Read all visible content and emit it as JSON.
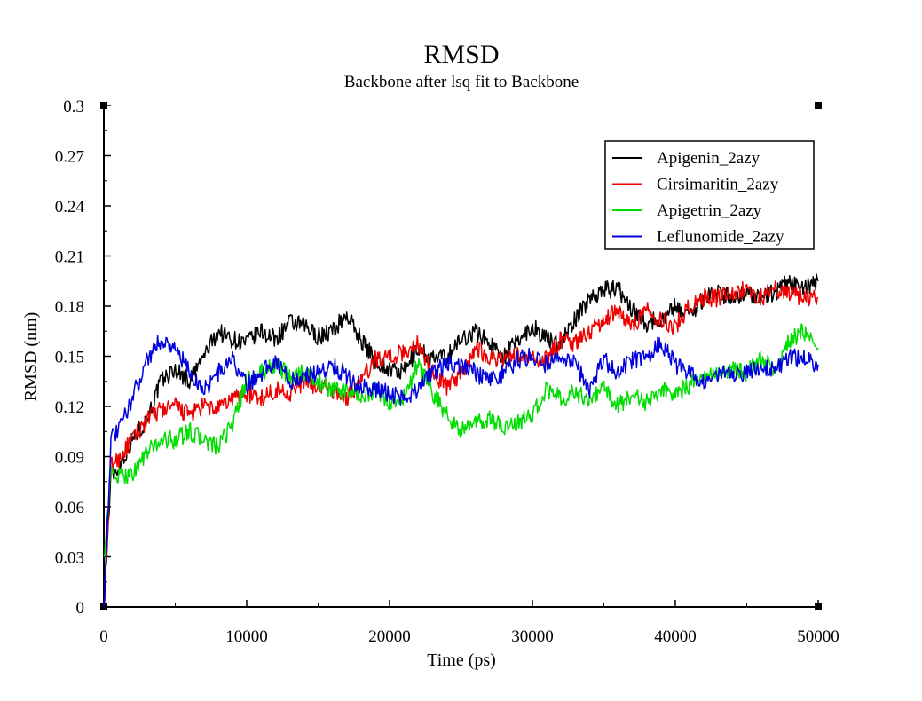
{
  "chart_data": {
    "type": "line",
    "title": "RMSD",
    "subtitle": "Backbone after lsq fit to Backbone",
    "xlabel": "Time (ps)",
    "ylabel": "RMSD (nm)",
    "xlim": [
      0,
      50000
    ],
    "ylim": [
      0,
      0.3
    ],
    "x_ticks": [
      0,
      10000,
      20000,
      30000,
      40000,
      50000
    ],
    "y_ticks": [
      0,
      0.03,
      0.06,
      0.09,
      0.12,
      0.15,
      0.18,
      0.21,
      0.24,
      0.27,
      0.3
    ],
    "x_tick_labels": [
      "0",
      "10000",
      "20000",
      "30000",
      "40000",
      "50000"
    ],
    "y_tick_labels": [
      "0",
      "0.03",
      "0.06",
      "0.09",
      "0.12",
      "0.15",
      "0.18",
      "0.21",
      "0.24",
      "0.27",
      "0.3"
    ],
    "grid": false,
    "legend_position": "top-right",
    "x": [
      0,
      500,
      1000,
      2000,
      3000,
      4000,
      5000,
      6000,
      7000,
      8000,
      9000,
      10000,
      11000,
      12000,
      13000,
      14000,
      15000,
      16000,
      17000,
      18000,
      19000,
      20000,
      21000,
      22000,
      23000,
      24000,
      25000,
      26000,
      27000,
      28000,
      29000,
      30000,
      31000,
      32000,
      33000,
      34000,
      35000,
      36000,
      37000,
      38000,
      39000,
      40000,
      41000,
      42000,
      43000,
      44000,
      45000,
      46000,
      47000,
      48000,
      49000,
      50000
    ],
    "series": [
      {
        "name": "Apigenin_2azy",
        "color": "#000000",
        "values": [
          0.0,
          0.078,
          0.083,
          0.1,
          0.112,
          0.135,
          0.142,
          0.135,
          0.15,
          0.165,
          0.16,
          0.158,
          0.165,
          0.16,
          0.17,
          0.168,
          0.162,
          0.165,
          0.175,
          0.16,
          0.148,
          0.142,
          0.14,
          0.155,
          0.148,
          0.15,
          0.16,
          0.165,
          0.158,
          0.15,
          0.16,
          0.168,
          0.16,
          0.158,
          0.172,
          0.185,
          0.19,
          0.19,
          0.178,
          0.17,
          0.172,
          0.18,
          0.175,
          0.185,
          0.188,
          0.185,
          0.188,
          0.185,
          0.188,
          0.195,
          0.19,
          0.195
        ]
      },
      {
        "name": "Cirsimaritin_2azy",
        "color": "#ee0000",
        "values": [
          0.0,
          0.085,
          0.088,
          0.1,
          0.112,
          0.118,
          0.12,
          0.115,
          0.12,
          0.118,
          0.125,
          0.128,
          0.125,
          0.13,
          0.128,
          0.135,
          0.132,
          0.13,
          0.125,
          0.135,
          0.148,
          0.15,
          0.152,
          0.158,
          0.14,
          0.132,
          0.14,
          0.155,
          0.15,
          0.148,
          0.15,
          0.148,
          0.148,
          0.16,
          0.158,
          0.165,
          0.172,
          0.178,
          0.168,
          0.178,
          0.172,
          0.168,
          0.18,
          0.185,
          0.185,
          0.188,
          0.19,
          0.185,
          0.19,
          0.188,
          0.185,
          0.185
        ]
      },
      {
        "name": "Apigetrin_2azy",
        "color": "#00dd00",
        "values": [
          0.03,
          0.08,
          0.078,
          0.08,
          0.092,
          0.1,
          0.1,
          0.105,
          0.1,
          0.095,
          0.11,
          0.135,
          0.14,
          0.145,
          0.138,
          0.14,
          0.135,
          0.13,
          0.128,
          0.125,
          0.13,
          0.122,
          0.125,
          0.145,
          0.128,
          0.115,
          0.105,
          0.11,
          0.112,
          0.108,
          0.11,
          0.115,
          0.13,
          0.125,
          0.128,
          0.125,
          0.13,
          0.12,
          0.128,
          0.122,
          0.13,
          0.128,
          0.132,
          0.14,
          0.14,
          0.142,
          0.14,
          0.148,
          0.142,
          0.16,
          0.165,
          0.155
        ]
      },
      {
        "name": "Leflunomide_2azy",
        "color": "#0000dd",
        "values": [
          0.0,
          0.1,
          0.105,
          0.125,
          0.148,
          0.16,
          0.155,
          0.14,
          0.13,
          0.14,
          0.148,
          0.132,
          0.14,
          0.148,
          0.135,
          0.138,
          0.14,
          0.145,
          0.138,
          0.132,
          0.13,
          0.128,
          0.125,
          0.13,
          0.14,
          0.145,
          0.145,
          0.14,
          0.135,
          0.14,
          0.148,
          0.15,
          0.145,
          0.148,
          0.145,
          0.13,
          0.148,
          0.14,
          0.148,
          0.15,
          0.158,
          0.145,
          0.14,
          0.135,
          0.14,
          0.138,
          0.14,
          0.145,
          0.142,
          0.15,
          0.148,
          0.145
        ]
      }
    ]
  }
}
